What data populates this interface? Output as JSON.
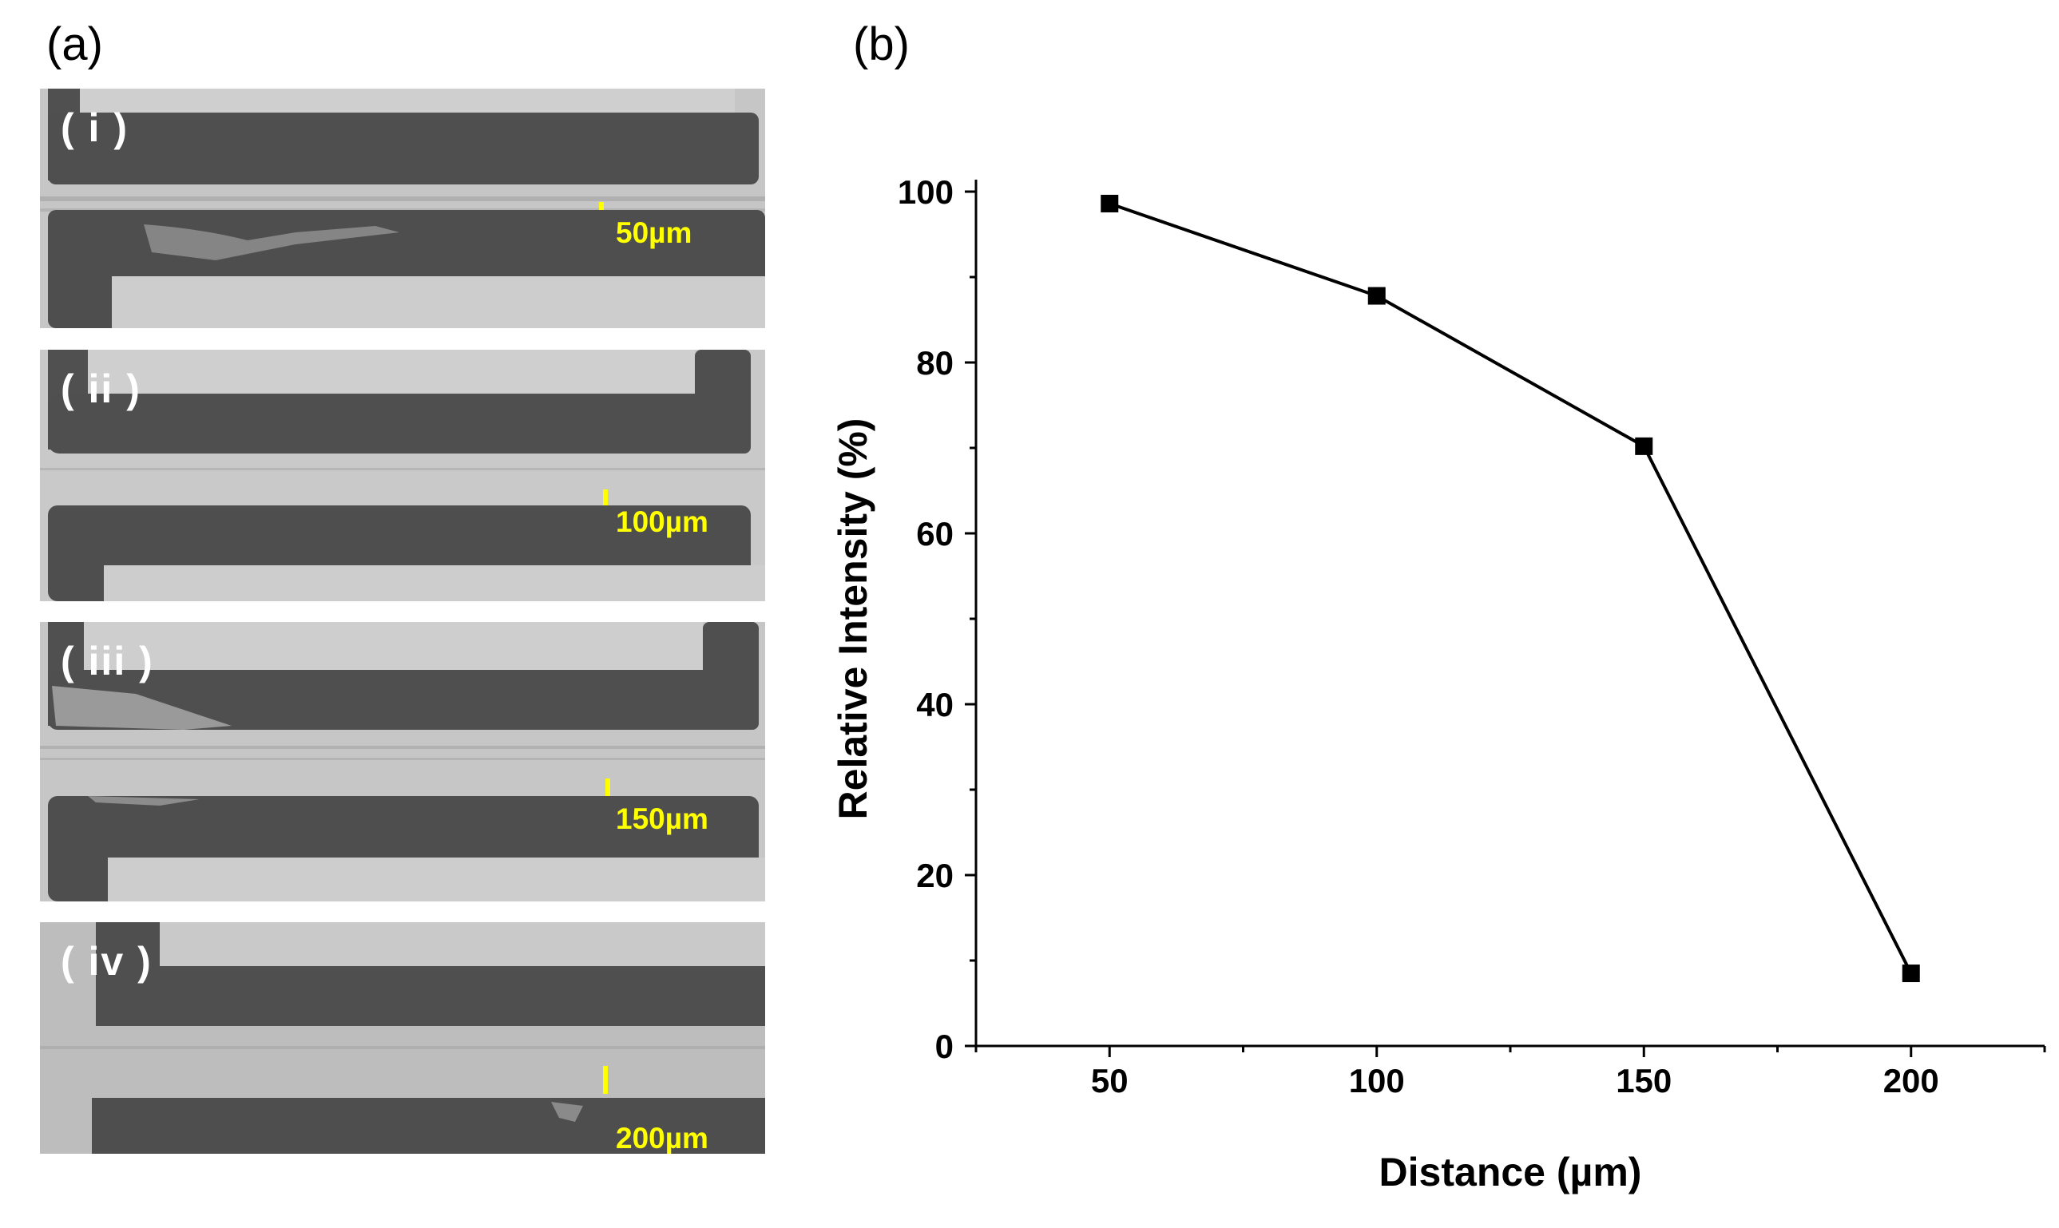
{
  "figure": {
    "panel_a_label": "(a)",
    "panel_b_label": "(b)"
  },
  "micrographs": [
    {
      "roman": "( i )",
      "scale": "50µm"
    },
    {
      "roman": "( ii )",
      "scale": "100µm"
    },
    {
      "roman": "( iii )",
      "scale": "150µm"
    },
    {
      "roman": "( iv )",
      "scale": "200µm"
    }
  ],
  "colors": {
    "scale_bar": "#ffff00",
    "electrode": "#505050",
    "substrate": "#c9c9c9",
    "series": "#000000"
  },
  "chart_data": {
    "type": "line",
    "title": "",
    "xlabel": "Distance (µm)",
    "ylabel": "Relative Intensity (%)",
    "xlim": [
      25,
      225
    ],
    "ylim": [
      0,
      100
    ],
    "xticks": [
      50,
      100,
      150,
      200
    ],
    "yticks": [
      0,
      20,
      40,
      60,
      80,
      100
    ],
    "grid": false,
    "marker": "square",
    "series": [
      {
        "name": "Relative Intensity",
        "x": [
          50,
          100,
          150,
          200
        ],
        "y": [
          98.6,
          87.8,
          70.2,
          8.5
        ]
      }
    ]
  }
}
